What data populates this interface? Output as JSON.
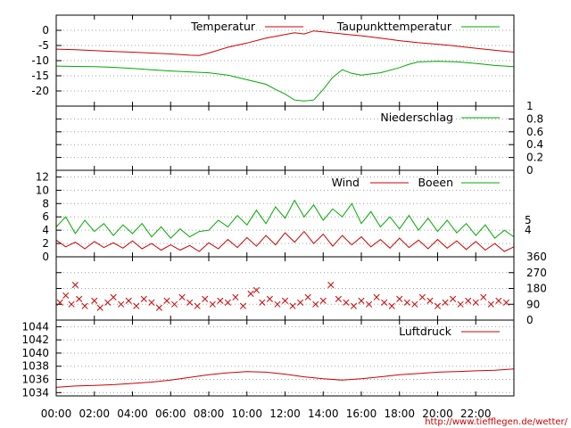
{
  "colors": {
    "red": "#cc0000",
    "green": "#00aa00",
    "grid": "#a0a0a0"
  },
  "source_url": "http://www.tiefflegen.de/wetter/",
  "x_axis": {
    "range": [
      0,
      24
    ],
    "tick_labels": [
      "00:00",
      "02:00",
      "04:00",
      "06:00",
      "08:00",
      "10:00",
      "12:00",
      "14:00",
      "16:00",
      "18:00",
      "20:00",
      "22:00"
    ]
  },
  "chart_data": [
    {
      "type": "line",
      "ylim": [
        -25,
        5
      ],
      "y_ticks": [
        0,
        -5,
        -10,
        -15,
        -20
      ],
      "y_tick_labels": [
        "0",
        "-5",
        "-10",
        "-15",
        "-20"
      ],
      "series": [
        {
          "name": "Temperatur",
          "color": "#cc0000",
          "points": [
            [
              0,
              -6.2
            ],
            [
              1,
              -6.4
            ],
            [
              2,
              -6.7
            ],
            [
              3,
              -7.0
            ],
            [
              4,
              -7.2
            ],
            [
              5,
              -7.5
            ],
            [
              6,
              -7.8
            ],
            [
              7,
              -8.2
            ],
            [
              7.5,
              -8.3
            ],
            [
              8,
              -7.5
            ],
            [
              9,
              -5.6
            ],
            [
              10,
              -4.2
            ],
            [
              11,
              -2.6
            ],
            [
              12,
              -1.4
            ],
            [
              12.5,
              -0.8
            ],
            [
              13,
              -1.2
            ],
            [
              13.5,
              -0.2
            ],
            [
              14,
              -0.5
            ],
            [
              15,
              -1.2
            ],
            [
              16,
              -1.8
            ],
            [
              17,
              -2.6
            ],
            [
              18,
              -3.4
            ],
            [
              19,
              -4.1
            ],
            [
              20,
              -4.6
            ],
            [
              21,
              -5.2
            ],
            [
              22,
              -5.9
            ],
            [
              23,
              -6.6
            ],
            [
              24,
              -7.2
            ]
          ]
        },
        {
          "name": "Taupunkttemperatur",
          "color": "#00aa00",
          "points": [
            [
              0,
              -11.8
            ],
            [
              1,
              -11.9
            ],
            [
              2,
              -12.0
            ],
            [
              3,
              -12.2
            ],
            [
              4,
              -12.6
            ],
            [
              5,
              -13.0
            ],
            [
              6,
              -13.4
            ],
            [
              7,
              -13.7
            ],
            [
              8,
              -14.0
            ],
            [
              9,
              -14.8
            ],
            [
              10,
              -16.3
            ],
            [
              11,
              -17.8
            ],
            [
              11.5,
              -19.5
            ],
            [
              12,
              -21.0
            ],
            [
              12.5,
              -23.0
            ],
            [
              13,
              -23.3
            ],
            [
              13.5,
              -23.0
            ],
            [
              14,
              -19.5
            ],
            [
              14.5,
              -15.5
            ],
            [
              15,
              -13.0
            ],
            [
              15.5,
              -14.2
            ],
            [
              16,
              -14.8
            ],
            [
              17,
              -14.0
            ],
            [
              18,
              -12.3
            ],
            [
              18.5,
              -11.2
            ],
            [
              19,
              -10.4
            ],
            [
              20,
              -10.2
            ],
            [
              21,
              -10.4
            ],
            [
              22,
              -10.9
            ],
            [
              23,
              -11.6
            ],
            [
              24,
              -12.0
            ]
          ]
        }
      ]
    },
    {
      "type": "line",
      "ylim": [
        0,
        1
      ],
      "y_ticks": [
        0,
        0.2,
        0.4,
        0.6,
        0.8,
        1
      ],
      "y_tick_labels": [
        "0",
        "0.2",
        "0.4",
        "0.6",
        "0.8",
        "1"
      ],
      "series": [
        {
          "name": "Niederschlag",
          "color": "#00aa00",
          "points": [
            [
              0,
              0
            ],
            [
              24,
              0
            ]
          ]
        }
      ]
    },
    {
      "type": "line",
      "ylim": [
        0,
        13
      ],
      "y_ticks": [
        0,
        2,
        4,
        6,
        8,
        10,
        12
      ],
      "y_tick_labels": [
        "0",
        "2",
        "4",
        "6",
        "8",
        "10",
        "12"
      ],
      "right_tick_values": [
        4,
        5.5
      ],
      "right_tick_labels": [
        "4",
        "5"
      ],
      "series": [
        {
          "name": "Wind",
          "color": "#cc0000",
          "points": [
            [
              0,
              2.5
            ],
            [
              0.5,
              1.5
            ],
            [
              1,
              2.2
            ],
            [
              1.5,
              1.2
            ],
            [
              2,
              2.3
            ],
            [
              2.5,
              1.4
            ],
            [
              3,
              2.1
            ],
            [
              3.5,
              1.3
            ],
            [
              4,
              2.4
            ],
            [
              4.5,
              1.2
            ],
            [
              5,
              2.0
            ],
            [
              5.5,
              1.0
            ],
            [
              6,
              1.8
            ],
            [
              6.5,
              1.0
            ],
            [
              7,
              1.7
            ],
            [
              7.5,
              0.8
            ],
            [
              8,
              2.1
            ],
            [
              8.5,
              1.2
            ],
            [
              9,
              2.6
            ],
            [
              9.5,
              1.4
            ],
            [
              10,
              2.9
            ],
            [
              10.5,
              1.6
            ],
            [
              11,
              3.2
            ],
            [
              11.5,
              1.8
            ],
            [
              12,
              3.6
            ],
            [
              12.5,
              2.2
            ],
            [
              13,
              3.8
            ],
            [
              13.5,
              2.0
            ],
            [
              14,
              3.4
            ],
            [
              14.5,
              1.6
            ],
            [
              15,
              3.2
            ],
            [
              15.5,
              1.8
            ],
            [
              16,
              3.0
            ],
            [
              16.5,
              1.5
            ],
            [
              17,
              2.6
            ],
            [
              17.5,
              1.3
            ],
            [
              18,
              2.8
            ],
            [
              18.5,
              1.4
            ],
            [
              19,
              2.5
            ],
            [
              19.5,
              1.2
            ],
            [
              20,
              2.6
            ],
            [
              20.5,
              1.3
            ],
            [
              21,
              2.4
            ],
            [
              21.5,
              1.1
            ],
            [
              22,
              2.3
            ],
            [
              22.5,
              1.0
            ],
            [
              23,
              2.0
            ],
            [
              23.5,
              0.8
            ],
            [
              24,
              1.5
            ]
          ]
        },
        {
          "name": "Boeen",
          "color": "#00aa00",
          "points": [
            [
              0,
              4.5
            ],
            [
              0.5,
              6.0
            ],
            [
              1,
              3.5
            ],
            [
              1.5,
              5.5
            ],
            [
              2,
              3.8
            ],
            [
              2.5,
              5.0
            ],
            [
              3,
              3.2
            ],
            [
              3.5,
              4.8
            ],
            [
              4,
              3.5
            ],
            [
              4.5,
              5.0
            ],
            [
              5,
              3.0
            ],
            [
              5.5,
              4.5
            ],
            [
              6,
              2.8
            ],
            [
              6.5,
              4.2
            ],
            [
              7,
              3.0
            ],
            [
              7.5,
              3.8
            ],
            [
              8,
              4.0
            ],
            [
              8.5,
              5.5
            ],
            [
              9,
              4.5
            ],
            [
              9.5,
              6.2
            ],
            [
              10,
              4.8
            ],
            [
              10.5,
              7.0
            ],
            [
              11,
              5.0
            ],
            [
              11.5,
              7.5
            ],
            [
              12,
              5.8
            ],
            [
              12.5,
              8.5
            ],
            [
              13,
              6.0
            ],
            [
              13.5,
              7.8
            ],
            [
              14,
              5.5
            ],
            [
              14.5,
              7.2
            ],
            [
              15,
              6.0
            ],
            [
              15.5,
              8.0
            ],
            [
              16,
              5.0
            ],
            [
              16.5,
              6.8
            ],
            [
              17,
              4.5
            ],
            [
              17.5,
              6.0
            ],
            [
              18,
              4.2
            ],
            [
              18.5,
              6.2
            ],
            [
              19,
              4.0
            ],
            [
              19.5,
              5.8
            ],
            [
              20,
              3.8
            ],
            [
              20.5,
              5.5
            ],
            [
              21,
              3.6
            ],
            [
              21.5,
              5.0
            ],
            [
              22,
              3.2
            ],
            [
              22.5,
              4.8
            ],
            [
              23,
              2.8
            ],
            [
              23.5,
              4.0
            ],
            [
              24,
              3.0
            ]
          ]
        }
      ]
    },
    {
      "type": "scatter",
      "ylim": [
        0,
        360
      ],
      "y_ticks": [
        0,
        90,
        180,
        270,
        360
      ],
      "y_tick_labels": [
        "0",
        "90",
        "180",
        "270",
        "360"
      ],
      "marker": "x",
      "color": "#cc0000",
      "points": [
        [
          0.2,
          100
        ],
        [
          0.5,
          140
        ],
        [
          0.8,
          90
        ],
        [
          1,
          200
        ],
        [
          1.2,
          120
        ],
        [
          1.5,
          80
        ],
        [
          2,
          110
        ],
        [
          2.3,
          70
        ],
        [
          2.7,
          100
        ],
        [
          3,
          130
        ],
        [
          3.4,
          90
        ],
        [
          3.8,
          110
        ],
        [
          4.2,
          80
        ],
        [
          4.6,
          120
        ],
        [
          5,
          100
        ],
        [
          5.4,
          70
        ],
        [
          5.8,
          110
        ],
        [
          6.2,
          90
        ],
        [
          6.6,
          130
        ],
        [
          7,
          100
        ],
        [
          7.4,
          80
        ],
        [
          7.8,
          120
        ],
        [
          8.2,
          90
        ],
        [
          8.6,
          110
        ],
        [
          9,
          100
        ],
        [
          9.4,
          130
        ],
        [
          9.8,
          80
        ],
        [
          10.2,
          150
        ],
        [
          10.5,
          170
        ],
        [
          10.8,
          100
        ],
        [
          11.2,
          120
        ],
        [
          11.6,
          90
        ],
        [
          12,
          110
        ],
        [
          12.4,
          80
        ],
        [
          12.8,
          100
        ],
        [
          13.2,
          130
        ],
        [
          13.6,
          90
        ],
        [
          14,
          110
        ],
        [
          14.4,
          200
        ],
        [
          14.8,
          120
        ],
        [
          15.2,
          100
        ],
        [
          15.6,
          80
        ],
        [
          16,
          110
        ],
        [
          16.4,
          90
        ],
        [
          16.8,
          130
        ],
        [
          17.2,
          100
        ],
        [
          17.6,
          80
        ],
        [
          18,
          120
        ],
        [
          18.4,
          100
        ],
        [
          18.8,
          90
        ],
        [
          19.2,
          130
        ],
        [
          19.6,
          110
        ],
        [
          20,
          80
        ],
        [
          20.4,
          100
        ],
        [
          20.8,
          120
        ],
        [
          21.2,
          90
        ],
        [
          21.6,
          110
        ],
        [
          22,
          100
        ],
        [
          22.4,
          130
        ],
        [
          22.8,
          90
        ],
        [
          23.2,
          110
        ],
        [
          23.6,
          100
        ]
      ]
    },
    {
      "type": "line",
      "ylim": [
        1033.5,
        1045
      ],
      "y_ticks": [
        1034,
        1036,
        1038,
        1040,
        1042,
        1044
      ],
      "y_tick_labels": [
        "1034",
        "1036",
        "1038",
        "1040",
        "1042",
        "1044"
      ],
      "series": [
        {
          "name": "Luftdruck",
          "color": "#cc0000",
          "points": [
            [
              0,
              1034.8
            ],
            [
              1,
              1035.0
            ],
            [
              2,
              1035.1
            ],
            [
              3,
              1035.2
            ],
            [
              4,
              1035.4
            ],
            [
              5,
              1035.6
            ],
            [
              6,
              1035.9
            ],
            [
              7,
              1036.3
            ],
            [
              8,
              1036.7
            ],
            [
              9,
              1037.0
            ],
            [
              10,
              1037.2
            ],
            [
              11,
              1037.1
            ],
            [
              12,
              1036.8
            ],
            [
              13,
              1036.4
            ],
            [
              14,
              1036.1
            ],
            [
              15,
              1035.9
            ],
            [
              16,
              1036.1
            ],
            [
              17,
              1036.4
            ],
            [
              18,
              1036.7
            ],
            [
              19,
              1036.9
            ],
            [
              20,
              1037.1
            ],
            [
              21,
              1037.2
            ],
            [
              22,
              1037.3
            ],
            [
              23,
              1037.4
            ],
            [
              24,
              1037.6
            ]
          ]
        }
      ]
    }
  ]
}
